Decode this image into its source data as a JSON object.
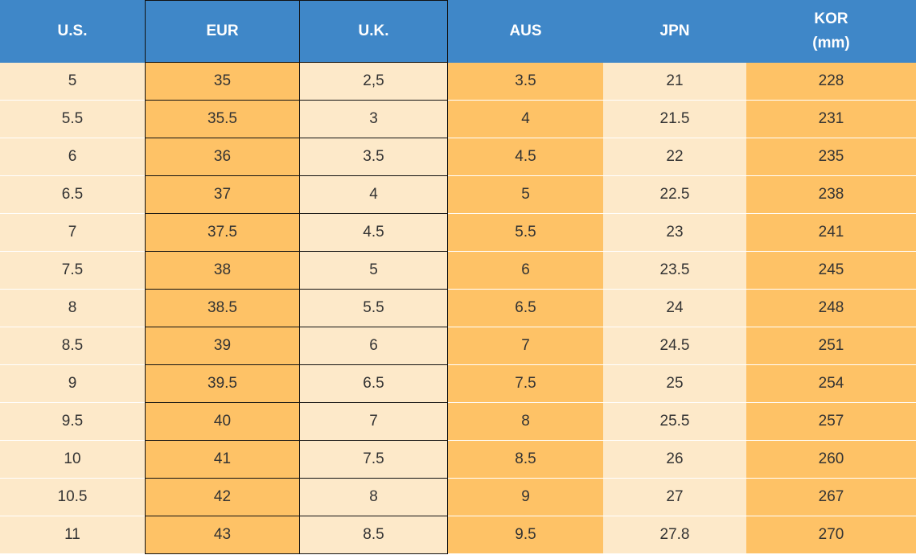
{
  "table": {
    "header": [
      "U.S.",
      "EUR",
      "U.K.",
      "AUS",
      "JPN",
      "KOR (mm)"
    ],
    "rows": [
      [
        "5",
        "35",
        "2,5",
        "3.5",
        "21",
        "228"
      ],
      [
        "5.5",
        "35.5",
        "3",
        "4",
        "21.5",
        "231"
      ],
      [
        "6",
        "36",
        "3.5",
        "4.5",
        "22",
        "235"
      ],
      [
        "6.5",
        "37",
        "4",
        "5",
        "22.5",
        "238"
      ],
      [
        "7",
        "37.5",
        "4.5",
        "5.5",
        "23",
        "241"
      ],
      [
        "7.5",
        "38",
        "5",
        "6",
        "23.5",
        "245"
      ],
      [
        "8",
        "38.5",
        "5.5",
        "6.5",
        "24",
        "248"
      ],
      [
        "8.5",
        "39",
        "6",
        "7",
        "24.5",
        "251"
      ],
      [
        "9",
        "39.5",
        "6.5",
        "7.5",
        "25",
        "254"
      ],
      [
        "9.5",
        "40",
        "7",
        "8",
        "25.5",
        "257"
      ],
      [
        "10",
        "41",
        "7.5",
        "8.5",
        "26",
        "260"
      ],
      [
        "10.5",
        "42",
        "8",
        "9",
        "27",
        "267"
      ],
      [
        "11",
        "43",
        "8.5",
        "9.5",
        "27.8",
        "270"
      ]
    ]
  }
}
